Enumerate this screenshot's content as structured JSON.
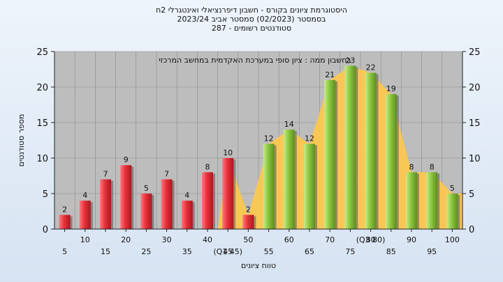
{
  "titles": {
    "line1": "היסטוגרמת ציונים בקורס - חשבון דיפרנציאלי ואינטגרלי 2ח",
    "line2": "בסמסטר  (02/2023)  סמסטר אביב 2023/24",
    "line3": "סטודנטים רשומים - 287"
  },
  "chart_data": {
    "type": "bar",
    "subtitle": "בחשבון ממה : ציון סופי במערכת האקדמית במחשב המרכזי",
    "xlabel": "טווח ציונים",
    "ylabel": "מספר סטודנטים",
    "ylim": [
      0,
      25
    ],
    "yticks": [
      0,
      5,
      10,
      15,
      20,
      25
    ],
    "grid": true,
    "categories": [
      "5",
      "10",
      "15",
      "20",
      "25",
      "30",
      "35",
      "40",
      "45",
      "50",
      "55",
      "60",
      "65",
      "70",
      "75",
      "80",
      "85",
      "90",
      "95",
      "100"
    ],
    "values": [
      2,
      4,
      7,
      9,
      5,
      7,
      4,
      8,
      10,
      2,
      12,
      14,
      12,
      21,
      23,
      22,
      19,
      8,
      8,
      5
    ],
    "bar_colors": [
      "red",
      "red",
      "red",
      "red",
      "red",
      "red",
      "red",
      "red",
      "red",
      "red",
      "green",
      "green",
      "green",
      "green",
      "green",
      "green",
      "green",
      "green",
      "green",
      "green"
    ],
    "xtick_labels_top": [
      "10",
      "20",
      "30",
      "40",
      "50",
      "60",
      "70",
      "80",
      "90",
      "100"
    ],
    "xtick_labels_bottom": [
      "5",
      "15",
      "25",
      "35",
      "45",
      "55",
      "65",
      "75",
      "85",
      "95"
    ],
    "quartile_markers": {
      "Q1": "(Q1 45)",
      "Q3": "(Q3 80)"
    },
    "colors": {
      "red_bar": "#e8303a",
      "green_bar": "#8cc63f",
      "area": "#ffc84a",
      "plot_bg": "#bdbdbd",
      "grid": "#8a8a8a"
    }
  }
}
